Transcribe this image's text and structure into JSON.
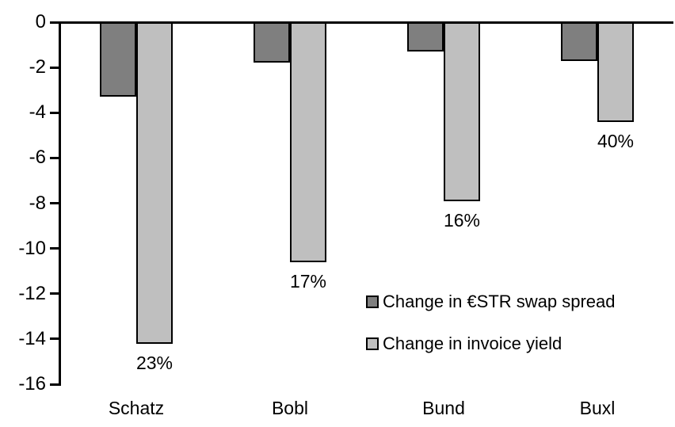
{
  "chart_data": {
    "type": "bar",
    "categories": [
      "Schatz",
      "Bobl",
      "Bund",
      "Buxl"
    ],
    "series": [
      {
        "name": "Change in €STR swap spread",
        "color": "#7f7f7f",
        "values": [
          -3.3,
          -1.8,
          -1.3,
          -1.7
        ]
      },
      {
        "name": "Change in invoice yield",
        "color": "#bfbfbf",
        "values": [
          -14.2,
          -10.6,
          -7.9,
          -4.4
        ],
        "point_labels": [
          "23%",
          "17%",
          "16%",
          "40%"
        ]
      }
    ],
    "title": "",
    "xlabel": "",
    "ylabel": "",
    "ylim": [
      -16,
      0
    ],
    "ytick_interval": 2,
    "ytick_labels": [
      "0",
      "-2",
      "-4",
      "-6",
      "-8",
      "-10",
      "-12",
      "-14",
      "-16"
    ],
    "grid": false,
    "legend_position": "inside-right",
    "bar_border_color": "#000000",
    "axis_color": "#000000",
    "text_color": "#000000",
    "background_color": "#ffffff"
  }
}
